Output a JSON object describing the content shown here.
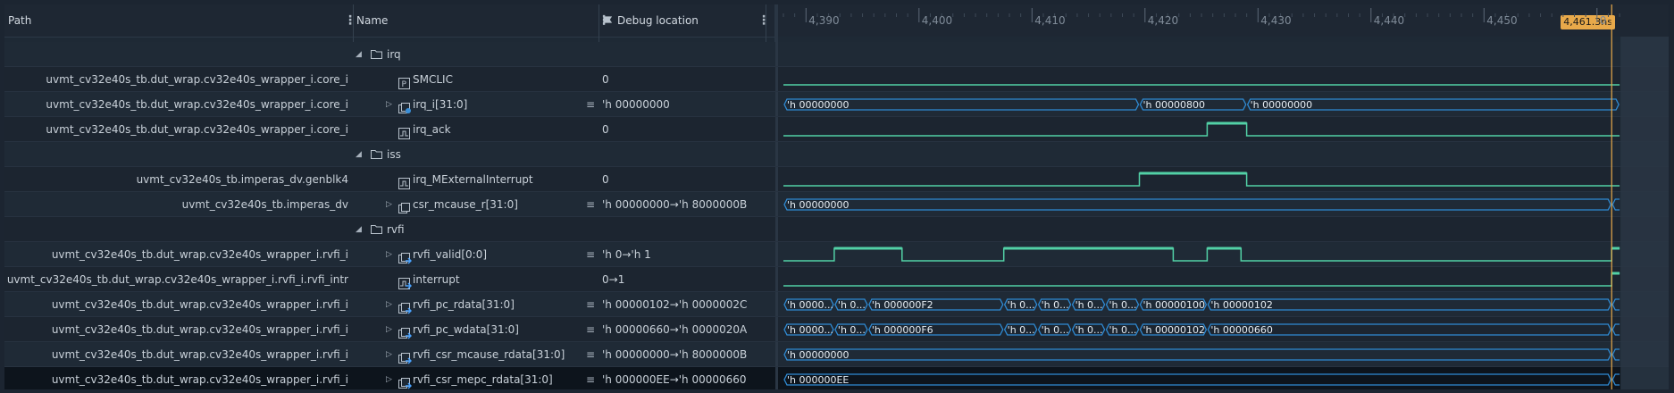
{
  "header": {
    "path_label": "Path",
    "name_label": "Name",
    "debug_label": "Debug location"
  },
  "ruler": {
    "ticks": [
      "4,390",
      "4,400",
      "4,410",
      "4,420",
      "4,430",
      "4,440",
      "4,450"
    ],
    "cursor_label": "4,461.3ns",
    "partial_tick": "0"
  },
  "rows": [
    {
      "type": "group",
      "name": "irq"
    },
    {
      "type": "signal",
      "path": "uvmt_cv32e40s_tb.dut_wrap.cv32e40s_wrapper_i.core_i",
      "name": "SMCLIC",
      "icon": "param-icon",
      "debug": "0"
    },
    {
      "type": "signal",
      "path": "uvmt_cv32e40s_tb.dut_wrap.cv32e40s_wrapper_i.core_i",
      "name": "irq_i[31:0]",
      "icon": "bus-gear-icon",
      "debug": "'h 00000000",
      "expand": true
    },
    {
      "type": "signal",
      "path": "uvmt_cv32e40s_tb.dut_wrap.cv32e40s_wrapper_i.core_i",
      "name": "irq_ack",
      "icon": "wave-icon",
      "debug": "0"
    },
    {
      "type": "group",
      "name": "iss"
    },
    {
      "type": "signal",
      "path": "uvmt_cv32e40s_tb.imperas_dv.genblk4",
      "name": "irq_MExternalInterrupt",
      "icon": "wave-icon",
      "debug": "0"
    },
    {
      "type": "signal",
      "path": "uvmt_cv32e40s_tb.imperas_dv",
      "name": "csr_mcause_r[31:0]",
      "icon": "bus-icon",
      "debug": "'h 00000000→'h 8000000B",
      "expand": true
    },
    {
      "type": "group",
      "name": "rvfi"
    },
    {
      "type": "signal",
      "path": "uvmt_cv32e40s_tb.dut_wrap.cv32e40s_wrapper_i.rvfi_i",
      "name": "rvfi_valid[0:0]",
      "icon": "bus-arrow-icon",
      "debug": "'h 0→'h 1",
      "expand": true
    },
    {
      "type": "signal",
      "path": "uvmt_cv32e40s_tb.dut_wrap.cv32e40s_wrapper_i.rvfi_i.rvfi_intr",
      "name": "interrupt",
      "icon": "wave-arrow-icon",
      "debug": "0→1"
    },
    {
      "type": "signal",
      "path": "uvmt_cv32e40s_tb.dut_wrap.cv32e40s_wrapper_i.rvfi_i",
      "name": "rvfi_pc_rdata[31:0]",
      "icon": "bus-arrow-icon",
      "debug": "'h 00000102→'h 0000002C",
      "expand": true
    },
    {
      "type": "signal",
      "path": "uvmt_cv32e40s_tb.dut_wrap.cv32e40s_wrapper_i.rvfi_i",
      "name": "rvfi_pc_wdata[31:0]",
      "icon": "bus-arrow-icon",
      "debug": "'h 00000660→'h 0000020A",
      "expand": true
    },
    {
      "type": "signal",
      "path": "uvmt_cv32e40s_tb.dut_wrap.cv32e40s_wrapper_i.rvfi_i",
      "name": "rvfi_csr_mcause_rdata[31:0]",
      "icon": "bus-arrow-icon",
      "debug": "'h 00000000→'h 8000000B",
      "expand": true
    },
    {
      "type": "signal",
      "path": "uvmt_cv32e40s_tb.dut_wrap.cv32e40s_wrapper_i.rvfi_i",
      "name": "rvfi_csr_mepc_rdata[31:0]",
      "icon": "bus-arrow-icon",
      "debug": "'h 000000EE→'h 00000660",
      "expand": true,
      "selected": true
    }
  ],
  "waves": {
    "irq_i": [
      {
        "t0": 4388,
        "t1": 4419.5,
        "label": "'h 00000000"
      },
      {
        "t0": 4419.5,
        "t1": 4429,
        "label": "'h 00000800"
      },
      {
        "t0": 4429,
        "t1": 4462,
        "label": "'h 00000000"
      }
    ],
    "irq_ack": [
      [
        4388,
        0
      ],
      [
        4425.5,
        0
      ],
      [
        4425.5,
        1
      ],
      [
        4429,
        1
      ],
      [
        4429,
        0
      ],
      [
        4462,
        0
      ]
    ],
    "mext": [
      [
        4388,
        0
      ],
      [
        4419.5,
        0
      ],
      [
        4419.5,
        1
      ],
      [
        4429,
        1
      ],
      [
        4429,
        0
      ],
      [
        4462,
        0
      ]
    ],
    "csr_mcause": [
      {
        "t0": 4388,
        "t1": 4461.3,
        "label": "'h 00000000"
      }
    ],
    "rvfi_valid": [
      [
        4388,
        0
      ],
      [
        4392.5,
        0
      ],
      [
        4392.5,
        1
      ],
      [
        4398.5,
        1
      ],
      [
        4398.5,
        0
      ],
      [
        4407.5,
        0
      ],
      [
        4407.5,
        1
      ],
      [
        4422.5,
        1
      ],
      [
        4422.5,
        0
      ],
      [
        4425.5,
        0
      ],
      [
        4425.5,
        1
      ],
      [
        4428.5,
        1
      ],
      [
        4428.5,
        0
      ],
      [
        4461.3,
        0
      ],
      [
        4461.3,
        1
      ],
      [
        4462,
        1
      ]
    ],
    "interrupt": [
      [
        4388,
        0
      ],
      [
        4461.3,
        0
      ],
      [
        4461.3,
        1
      ],
      [
        4462,
        1
      ]
    ],
    "pc_rdata": [
      {
        "t0": 4388,
        "t1": 4392.5,
        "label": "'h 0000..."
      },
      {
        "t0": 4392.5,
        "t1": 4395.5,
        "label": "'h 0..."
      },
      {
        "t0": 4395.5,
        "t1": 4407.5,
        "label": "'h 000000F2"
      },
      {
        "t0": 4407.5,
        "t1": 4410.5,
        "label": "'h 0..."
      },
      {
        "t0": 4410.5,
        "t1": 4413.5,
        "label": "'h 0..."
      },
      {
        "t0": 4413.5,
        "t1": 4416.5,
        "label": "'h 0..."
      },
      {
        "t0": 4416.5,
        "t1": 4419.5,
        "label": "'h 0..."
      },
      {
        "t0": 4419.5,
        "t1": 4425.5,
        "label": "'h 00000100"
      },
      {
        "t0": 4425.5,
        "t1": 4461.3,
        "label": "'h 00000102"
      }
    ],
    "pc_wdata": [
      {
        "t0": 4388,
        "t1": 4392.5,
        "label": "'h 0000..."
      },
      {
        "t0": 4392.5,
        "t1": 4395.5,
        "label": "'h 0..."
      },
      {
        "t0": 4395.5,
        "t1": 4407.5,
        "label": "'h 000000F6"
      },
      {
        "t0": 4407.5,
        "t1": 4410.5,
        "label": "'h 0..."
      },
      {
        "t0": 4410.5,
        "t1": 4413.5,
        "label": "'h 0..."
      },
      {
        "t0": 4413.5,
        "t1": 4416.5,
        "label": "'h 0..."
      },
      {
        "t0": 4416.5,
        "t1": 4419.5,
        "label": "'h 0..."
      },
      {
        "t0": 4419.5,
        "t1": 4425.5,
        "label": "'h 00000102"
      },
      {
        "t0": 4425.5,
        "t1": 4461.3,
        "label": "'h 00000660"
      }
    ],
    "csr_mcause_rdata": [
      {
        "t0": 4388,
        "t1": 4461.3,
        "label": "'h 00000000"
      }
    ],
    "mepc_rdata": [
      {
        "t0": 4388,
        "t1": 4461.3,
        "label": "'h 000000EE"
      }
    ]
  },
  "colors": {
    "bus": "#2f8bd4",
    "logic": "#52d1a6",
    "cursor": "#e8a94a"
  }
}
